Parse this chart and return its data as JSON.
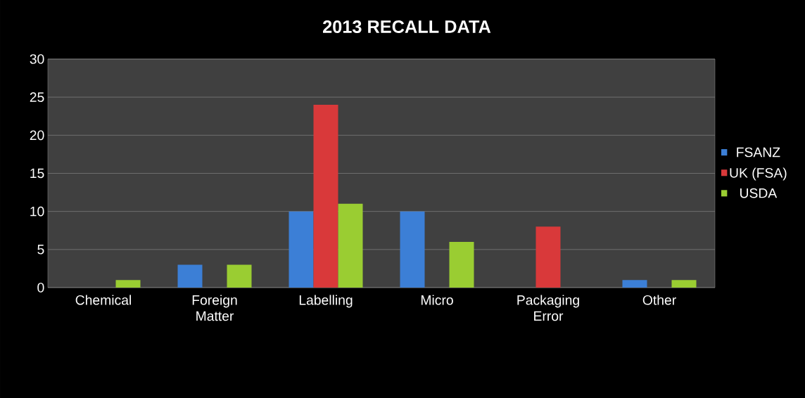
{
  "chart_data": {
    "type": "bar",
    "title": "2013 RECALL DATA",
    "categories": [
      "Chemical",
      "Foreign Matter",
      "Labelling",
      "Micro",
      "Packaging Error",
      "Other"
    ],
    "series": [
      {
        "name": "FSANZ",
        "color": "#3c7fd6",
        "values": [
          null,
          3,
          10,
          10,
          null,
          1
        ]
      },
      {
        "name": "UK (FSA)",
        "color": "#d9393a",
        "values": [
          null,
          null,
          24,
          null,
          8,
          null
        ]
      },
      {
        "name": "USDA",
        "color": "#9acd32",
        "values": [
          1,
          3,
          11,
          6,
          null,
          1
        ]
      }
    ],
    "ylim": [
      0,
      30
    ],
    "yticks": [
      0,
      5,
      10,
      15,
      20,
      25,
      30
    ],
    "grid": "y",
    "legend": "right"
  }
}
